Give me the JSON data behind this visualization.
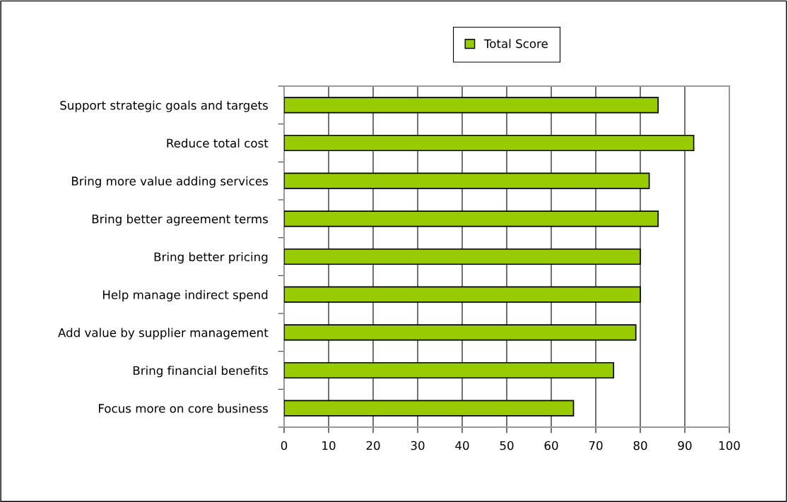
{
  "chart_data": {
    "type": "bar",
    "orientation": "horizontal",
    "categories": [
      "Support strategic goals and targets",
      "Reduce total cost",
      "Bring more value adding services",
      "Bring better agreement terms",
      "Bring better pricing",
      "Help manage indirect spend",
      "Add value by supplier management",
      "Bring financial benefits",
      "Focus more on core business"
    ],
    "series": [
      {
        "name": "Total Score",
        "color": "#99cc00",
        "values": [
          84,
          92,
          82,
          84,
          80,
          80,
          79,
          74,
          65
        ]
      }
    ],
    "xlim": [
      0,
      100
    ],
    "xticks": [
      0,
      10,
      20,
      30,
      40,
      50,
      60,
      70,
      80,
      90,
      100
    ],
    "grid": "x",
    "legend": "top"
  }
}
